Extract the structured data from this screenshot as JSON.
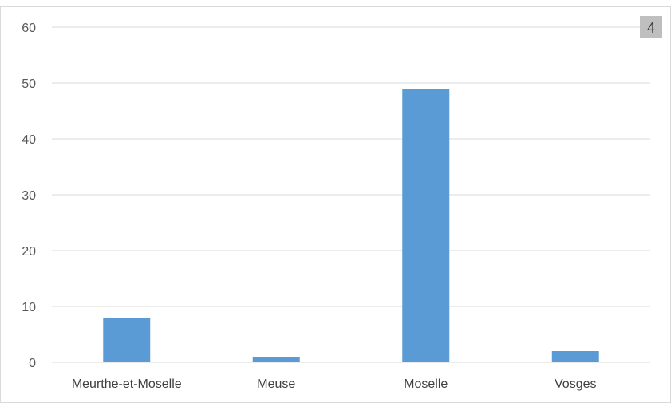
{
  "badge": "4",
  "colors": {
    "bar": "#5B9BD5",
    "grid": "#D9D9D9",
    "badge_bg": "#BFBFBF"
  },
  "chart_data": {
    "type": "bar",
    "categories": [
      "Meurthe-et-Moselle",
      "Meuse",
      "Moselle",
      "Vosges"
    ],
    "values": [
      8,
      1,
      49,
      2
    ],
    "yticks": [
      0,
      10,
      20,
      30,
      40,
      50,
      60
    ],
    "ylim": [
      0,
      60
    ],
    "grid": true,
    "legend": "none"
  }
}
